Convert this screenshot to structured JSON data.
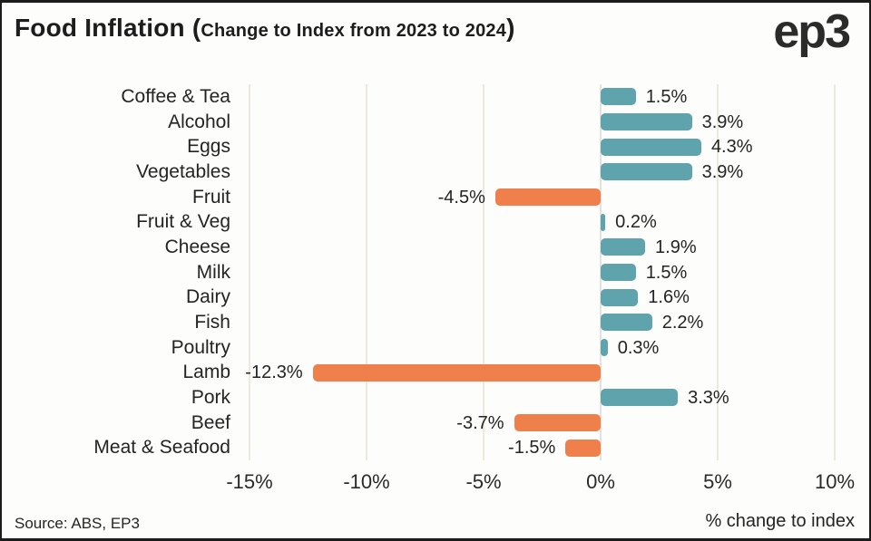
{
  "header": {
    "title_main": "Food Inflation (",
    "title_sub": "Change to Index from 2023 to 2024",
    "title_close": ")",
    "logo": "ep3"
  },
  "footer": {
    "source": "Source: ABS, EP3",
    "axis_note": "% change to index"
  },
  "chart_data": {
    "type": "bar",
    "orientation": "horizontal",
    "title": "Food Inflation (Change to Index from 2023 to 2024)",
    "xlabel": "% change to index",
    "categories": [
      "Coffee & Tea",
      "Alcohol",
      "Eggs",
      "Vegetables",
      "Fruit",
      "Fruit & Veg",
      "Cheese",
      "Milk",
      "Dairy",
      "Fish",
      "Poultry",
      "Lamb",
      "Pork",
      "Beef",
      "Meat & Seafood"
    ],
    "values": [
      1.5,
      3.9,
      4.3,
      3.9,
      -4.5,
      0.2,
      1.9,
      1.5,
      1.6,
      2.2,
      0.3,
      -12.3,
      3.3,
      -3.7,
      -1.5
    ],
    "value_labels": [
      "1.5%",
      "3.9%",
      "4.3%",
      "3.9%",
      "-4.5%",
      "0.2%",
      "1.9%",
      "1.5%",
      "1.6%",
      "2.2%",
      "0.3%",
      "-12.3%",
      "3.3%",
      "-3.7%",
      "-1.5%"
    ],
    "x_ticks": [
      -15,
      -10,
      -5,
      0,
      5,
      10
    ],
    "x_tick_labels": [
      "-15%",
      "-10%",
      "-5%",
      "0%",
      "5%",
      "10%"
    ],
    "xlim": [
      -15,
      10
    ],
    "grid": true,
    "legend": false,
    "colors": {
      "positive": "#5fa3ac",
      "negative": "#f0804b",
      "gridline": "#ece9dd",
      "zero_line": "#e2e2df",
      "text": "#242424",
      "background": "#fdfdfb"
    }
  }
}
